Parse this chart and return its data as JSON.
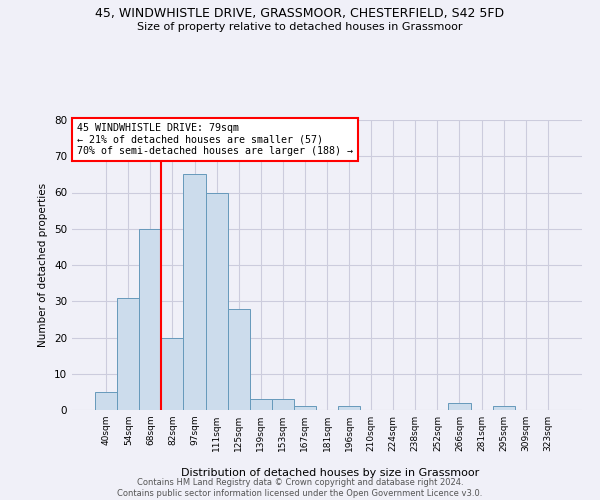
{
  "title_line1": "45, WINDWHISTLE DRIVE, GRASSMOOR, CHESTERFIELD, S42 5FD",
  "title_line2": "Size of property relative to detached houses in Grassmoor",
  "xlabel": "Distribution of detached houses by size in Grassmoor",
  "ylabel": "Number of detached properties",
  "bar_color": "#ccdcec",
  "bar_edge_color": "#6699bb",
  "categories": [
    "40sqm",
    "54sqm",
    "68sqm",
    "82sqm",
    "97sqm",
    "111sqm",
    "125sqm",
    "139sqm",
    "153sqm",
    "167sqm",
    "181sqm",
    "196sqm",
    "210sqm",
    "224sqm",
    "238sqm",
    "252sqm",
    "266sqm",
    "281sqm",
    "295sqm",
    "309sqm",
    "323sqm"
  ],
  "values": [
    5,
    31,
    50,
    20,
    65,
    60,
    28,
    3,
    3,
    1,
    0,
    1,
    0,
    0,
    0,
    0,
    2,
    0,
    1,
    0,
    0
  ],
  "red_line_x": 2.5,
  "annotation_line1": "45 WINDWHISTLE DRIVE: 79sqm",
  "annotation_line2": "← 21% of detached houses are smaller (57)",
  "annotation_line3": "70% of semi-detached houses are larger (188) →",
  "annotation_box_color": "white",
  "annotation_box_edge": "red",
  "vline_color": "red",
  "ylim": [
    0,
    80
  ],
  "yticks": [
    0,
    10,
    20,
    30,
    40,
    50,
    60,
    70,
    80
  ],
  "footer_text": "Contains HM Land Registry data © Crown copyright and database right 2024.\nContains public sector information licensed under the Open Government Licence v3.0.",
  "background_color": "#f0f0f8",
  "grid_color": "#ccccdd"
}
